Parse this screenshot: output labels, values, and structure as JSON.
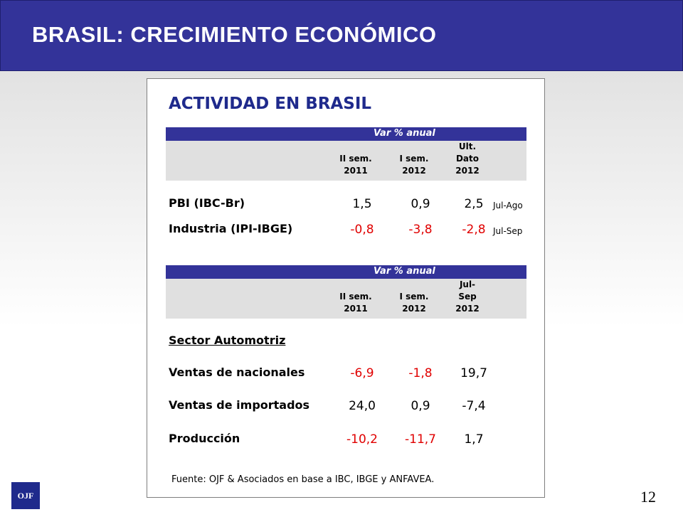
{
  "slide": {
    "title": "BRASIL: CRECIMIENTO ECONÓMICO",
    "page_number": "12",
    "logo_text": "OJF"
  },
  "panel": {
    "title": "ACTIVIDAD EN BRASIL",
    "source": "Fuente: OJF & Asociados en base a IBC, IBGE y ANFAVEA."
  },
  "table1": {
    "band": "Var % anual",
    "columns": [
      {
        "l1": "",
        "l2": "II sem.",
        "l3": "2011"
      },
      {
        "l1": "",
        "l2": "I sem.",
        "l3": "2012"
      },
      {
        "l1": "Ult.",
        "l2": "Dato",
        "l3": "2012"
      }
    ],
    "rows": [
      {
        "label": "PBI (IBC-Br)",
        "values": [
          "1,5",
          "0,9",
          "2,5"
        ],
        "period": "Jul-Ago"
      },
      {
        "label": "Industria (IPI-IBGE)",
        "values": [
          "-0,8",
          "-3,8",
          "-2,8"
        ],
        "period": "Jul-Sep"
      }
    ]
  },
  "table2": {
    "band": "Var % anual",
    "columns": [
      {
        "l1": "",
        "l2": "II sem.",
        "l3": "2011"
      },
      {
        "l1": "",
        "l2": "I sem.",
        "l3": "2012"
      },
      {
        "l1": "Jul-",
        "l2": "Sep",
        "l3": "2012"
      }
    ],
    "section": "Sector Automotriz",
    "rows": [
      {
        "label": "Ventas de nacionales",
        "values": [
          "-6,9",
          "-1,8",
          "19,7"
        ]
      },
      {
        "label": "Ventas de importados",
        "values": [
          "24,0",
          "0,9",
          "-7,4"
        ]
      },
      {
        "label": "Producción",
        "values": [
          "-10,2",
          "-11,7",
          "1,7"
        ]
      }
    ]
  },
  "colors": {
    "accent": "#333399",
    "negative": "#e00000",
    "header_fill": "#e0e0e0"
  }
}
